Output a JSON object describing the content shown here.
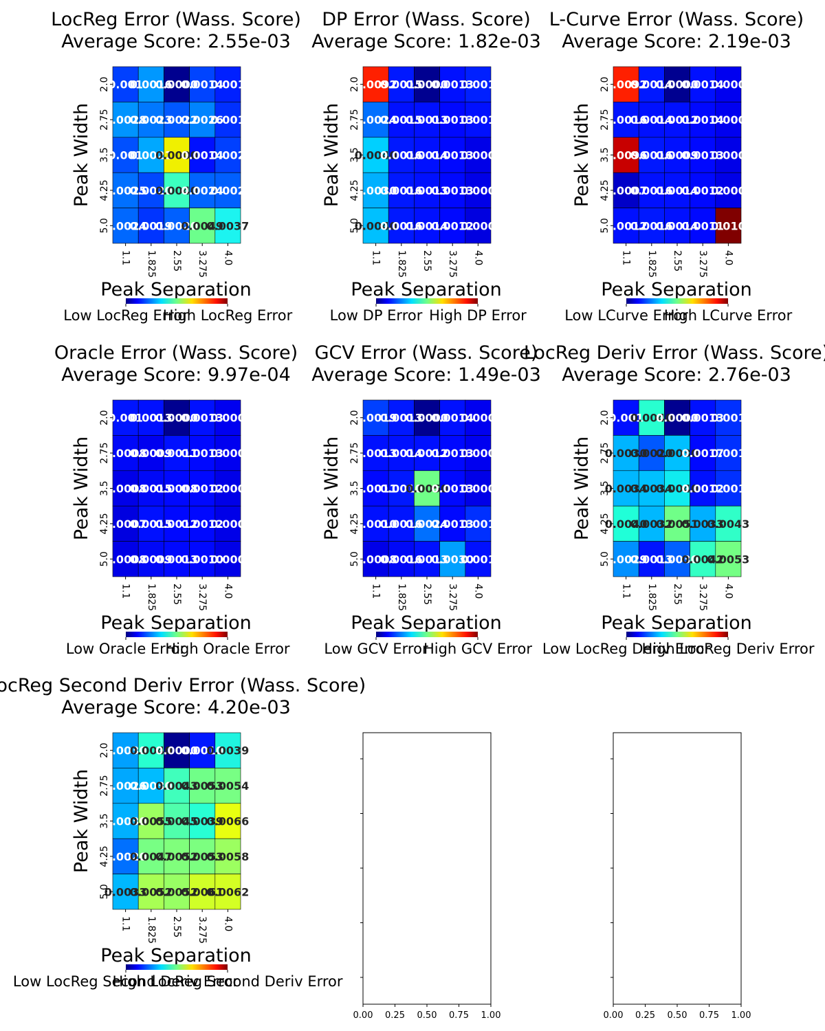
{
  "figure": {
    "xlabel": "Peak Separation",
    "ylabel": "Peak Width",
    "empty_axis_ticks": [
      "0.00",
      "0.25",
      "0.50",
      "0.75",
      "1.00"
    ]
  },
  "chart_data": [
    {
      "type": "heatmap",
      "title": "LocReg Error (Wass. Score)",
      "subtitle": "Average Score: 2.55e-03",
      "x_ticks": [
        "1.1",
        "1.825",
        "2.55",
        "3.275",
        "4.0"
      ],
      "y_ticks": [
        "2.0",
        "2.75",
        "3.5",
        "4.25",
        "5.0"
      ],
      "xlabel": "Peak Separation",
      "ylabel": "Peak Width",
      "colorbar_low": "Low LocReg Error",
      "colorbar_high": "High LocReg Error",
      "colors": [
        [
          "#0040ff",
          "#0098ff",
          "#00008f",
          "#0044ff",
          "#0020ff"
        ],
        [
          "#0094ff",
          "#0078ff",
          "#0058ff",
          "#0084ff",
          "#0030ff"
        ],
        [
          "#0050ff",
          "#00a8ff",
          "#f0f000",
          "#0010ff",
          "#0040ff"
        ],
        [
          "#0070ff",
          "#0048ff",
          "#3cffc0",
          "#0064ff",
          "#0060ff"
        ],
        [
          "#0068ff",
          "#0034ff",
          "#0060ff",
          "#6cff8c",
          "#1cf4f0"
        ]
      ],
      "labels": [
        [
          "0.001",
          "0.0016",
          "0.0000",
          "0.0014",
          "0.001"
        ],
        [
          "0.0028",
          "0.0023",
          "0.0022",
          "0.0026",
          "0.001"
        ],
        [
          "0.001",
          "0.0021",
          "0.0000",
          "0.0014",
          "0.002"
        ],
        [
          "0.0025",
          "0.0020",
          "0.0040",
          "0.0024",
          "0.002"
        ],
        [
          "0.0024",
          "0.0019",
          "0.0020",
          "0.0049",
          "0.0037"
        ]
      ],
      "label_dark": [
        [
          false,
          false,
          false,
          false,
          false
        ],
        [
          false,
          false,
          false,
          false,
          false
        ],
        [
          false,
          false,
          true,
          false,
          false
        ],
        [
          false,
          false,
          true,
          false,
          false
        ],
        [
          false,
          false,
          false,
          true,
          true
        ]
      ]
    },
    {
      "type": "heatmap",
      "title": "DP Error (Wass. Score)",
      "subtitle": "Average Score: 1.82e-03",
      "x_ticks": [
        "1.1",
        "1.825",
        "2.55",
        "3.275",
        "4.0"
      ],
      "y_ticks": [
        "2.0",
        "2.75",
        "3.5",
        "4.25",
        "5.0"
      ],
      "xlabel": "Peak Separation",
      "ylabel": "Peak Width",
      "colorbar_low": "Low DP Error",
      "colorbar_high": "High DP Error",
      "colors": [
        [
          "#ff2000",
          "#0018ff",
          "#000090",
          "#0010ff",
          "#0020ff"
        ],
        [
          "#0070ff",
          "#0010ff",
          "#0010ff",
          "#0008ff",
          "#0010ff"
        ],
        [
          "#00d0ff",
          "#0018ff",
          "#0010ff",
          "#0008ff",
          "#0000e8"
        ],
        [
          "#00b0ff",
          "#0018ff",
          "#0010ff",
          "#0008ff",
          "#0000e8"
        ],
        [
          "#00c0ff",
          "#0018ff",
          "#0010ff",
          "#0008ff",
          "#0000e0"
        ]
      ],
      "labels": [
        [
          "0.0092",
          "0.0015",
          "0.0000",
          "0.0013",
          "0.001"
        ],
        [
          "0.0024",
          "0.0015",
          "0.0013",
          "0.0013",
          "0.001"
        ],
        [
          "0.0040",
          "0.0016",
          "0.0014",
          "0.0013",
          "0.000"
        ],
        [
          "0.0030",
          "0.0016",
          "0.0013",
          "0.0013",
          "0.000"
        ],
        [
          "0.0040",
          "0.0016",
          "0.0014",
          "0.0012",
          "0.000"
        ]
      ],
      "label_dark": [
        [
          false,
          false,
          false,
          false,
          false
        ],
        [
          false,
          false,
          false,
          false,
          false
        ],
        [
          true,
          false,
          false,
          false,
          false
        ],
        [
          false,
          false,
          false,
          false,
          false
        ],
        [
          true,
          false,
          false,
          false,
          false
        ]
      ]
    },
    {
      "type": "heatmap",
      "title": "L-Curve Error (Wass. Score)",
      "subtitle": "Average Score: 2.19e-03",
      "x_ticks": [
        "1.1",
        "1.825",
        "2.55",
        "3.275",
        "4.0"
      ],
      "y_ticks": [
        "2.0",
        "2.75",
        "3.5",
        "4.25",
        "5.0"
      ],
      "xlabel": "Peak Separation",
      "ylabel": "Peak Width",
      "colorbar_low": "Low LCurve Error",
      "colorbar_high": "High LCurve Error",
      "colors": [
        [
          "#ff2000",
          "#0018ff",
          "#000090",
          "#0010ff",
          "#0000f0"
        ],
        [
          "#0014ff",
          "#0010ff",
          "#0010ff",
          "#0008ff",
          "#0000f0"
        ],
        [
          "#c80000",
          "#0018ff",
          "#0010ff",
          "#0008ff",
          "#0000e8"
        ],
        [
          "#0000c8",
          "#0010ff",
          "#0010ff",
          "#0008ff",
          "#0000e8"
        ],
        [
          "#0010ff",
          "#0018ff",
          "#0010ff",
          "#0008ff",
          "#800000"
        ]
      ],
      "labels": [
        [
          "0.0092",
          "0.0014",
          "0.0000",
          "0.0014",
          "0.000"
        ],
        [
          "0.0016",
          "0.0014",
          "0.0012",
          "0.0014",
          "0.000"
        ],
        [
          "0.0096",
          "0.0016",
          "0.0009",
          "0.0013",
          "0.000"
        ],
        [
          "0.0007",
          "0.0016",
          "0.0014",
          "0.0012",
          "0.000"
        ],
        [
          "0.0012",
          "0.0016",
          "0.0014",
          "0.0011",
          "0.010"
        ]
      ],
      "label_dark": [
        [
          false,
          false,
          false,
          false,
          false
        ],
        [
          false,
          false,
          false,
          false,
          false
        ],
        [
          false,
          false,
          false,
          false,
          false
        ],
        [
          false,
          false,
          false,
          false,
          false
        ],
        [
          false,
          false,
          false,
          false,
          false
        ]
      ]
    },
    {
      "type": "heatmap",
      "title": "Oracle Error (Wass. Score)",
      "subtitle": "Average Score: 9.97e-04",
      "x_ticks": [
        "1.1",
        "1.825",
        "2.55",
        "3.275",
        "4.0"
      ],
      "y_ticks": [
        "2.0",
        "2.75",
        "3.5",
        "4.25",
        "5.0"
      ],
      "xlabel": "Peak Separation",
      "ylabel": "Peak Width",
      "colorbar_low": "Low Oracle Error",
      "colorbar_high": "High Oracle Error",
      "colors": [
        [
          "#0014ff",
          "#0010ff",
          "#000090",
          "#0010ff",
          "#0000f0"
        ],
        [
          "#0008f8",
          "#0000f0",
          "#0010ff",
          "#0008ff",
          "#0000f0"
        ],
        [
          "#0000e8",
          "#0008f8",
          "#0008ff",
          "#0008ff",
          "#0000e8"
        ],
        [
          "#0000e0",
          "#0010ff",
          "#0008ff",
          "#0008ff",
          "#0000e8"
        ],
        [
          "#0000e8",
          "#0008f8",
          "#0008ff",
          "#0008ff",
          "#0000e8"
        ]
      ],
      "labels": [
        [
          "0.001",
          "0.0013",
          "0.0000",
          "0.0013",
          "0.000"
        ],
        [
          "0.0008",
          "0.0009",
          "0.0011",
          "0.0013",
          "0.000"
        ],
        [
          "0.0008",
          "0.0015",
          "0.0008",
          "0.0012",
          "0.000"
        ],
        [
          "0.0007",
          "0.0015",
          "0.0012",
          "0.0012",
          "0.000"
        ],
        [
          "0.0008",
          "0.0009",
          "0.0013",
          "0.0010",
          "0.000"
        ]
      ],
      "label_dark": [
        [
          false,
          false,
          false,
          false,
          false
        ],
        [
          false,
          false,
          false,
          false,
          false
        ],
        [
          false,
          false,
          false,
          false,
          false
        ],
        [
          false,
          false,
          false,
          false,
          false
        ],
        [
          false,
          false,
          false,
          false,
          false
        ]
      ]
    },
    {
      "type": "heatmap",
      "title": "GCV Error (Wass. Score)",
      "subtitle": "Average Score: 1.49e-03",
      "x_ticks": [
        "1.1",
        "1.825",
        "2.55",
        "3.275",
        "4.0"
      ],
      "y_ticks": [
        "2.0",
        "2.75",
        "3.5",
        "4.25",
        "5.0"
      ],
      "xlabel": "Peak Separation",
      "ylabel": "Peak Width",
      "colorbar_low": "Low GCV Error",
      "colorbar_high": "High GCV Error",
      "colors": [
        [
          "#0040ff",
          "#0018ff",
          "#000090",
          "#0010ff",
          "#0000f0"
        ],
        [
          "#0010ff",
          "#0010ff",
          "#0010ff",
          "#0008ff",
          "#0000f0"
        ],
        [
          "#0008ff",
          "#0018ff",
          "#70ff88",
          "#0008ff",
          "#0000e8"
        ],
        [
          "#0010ff",
          "#0014ff",
          "#0070ff",
          "#0008ff",
          "#0030ff"
        ],
        [
          "#0000e8",
          "#0008f8",
          "#0010ff",
          "#00a0ff",
          "#0010ff"
        ]
      ],
      "labels": [
        [
          "0.0019",
          "0.0013",
          "0.0000",
          "0.0014",
          "0.000"
        ],
        [
          "0.0013",
          "0.0014",
          "0.0012",
          "0.0013",
          "0.000"
        ],
        [
          "0.0011",
          "0.0010",
          "0.0050",
          "0.0013",
          "0.000"
        ],
        [
          "0.0010",
          "0.0016",
          "0.0024",
          "0.0013",
          "0.001"
        ],
        [
          "0.0008",
          "0.0016",
          "0.0013",
          "0.0030",
          "0.001"
        ]
      ],
      "label_dark": [
        [
          false,
          false,
          false,
          false,
          false
        ],
        [
          false,
          false,
          false,
          false,
          false
        ],
        [
          false,
          false,
          true,
          false,
          false
        ],
        [
          false,
          false,
          false,
          false,
          false
        ],
        [
          false,
          false,
          false,
          false,
          false
        ]
      ]
    },
    {
      "type": "heatmap",
      "title": "LocReg Deriv Error (Wass. Score)",
      "subtitle": "Average Score: 2.76e-03",
      "x_ticks": [
        "1.1",
        "1.825",
        "2.55",
        "3.275",
        "4.0"
      ],
      "y_ticks": [
        "2.0",
        "2.75",
        "3.5",
        "4.25",
        "5.0"
      ],
      "xlabel": "Peak Separation",
      "ylabel": "Peak Width",
      "colorbar_low": "Low LocReg Deriv Error",
      "colorbar_high": "High LocReg Deriv Error",
      "colors": [
        [
          "#0010ff",
          "#28ffd0",
          "#000090",
          "#0010ff",
          "#0030ff"
        ],
        [
          "#00b4ff",
          "#0058ff",
          "#00c0ff",
          "#0008ff",
          "#0030ff"
        ],
        [
          "#00b8ff",
          "#00c0ff",
          "#10ecf0",
          "#0010ff",
          "#0030ff"
        ],
        [
          "#20ffd8",
          "#00b8ff",
          "#70ff88",
          "#00b0ff",
          "#30ffc8"
        ],
        [
          "#0090ff",
          "#0014ff",
          "#0060ff",
          "#34ffc4",
          "#74ff84"
        ]
      ],
      "labels": [
        [
          "0.001",
          "0.0040",
          "0.0000",
          "0.0013",
          "0.001"
        ],
        [
          "0.0030",
          "0.0020",
          "0.0030",
          "0.0017",
          "0.001"
        ],
        [
          "0.0034",
          "0.0034",
          "0.0040",
          "0.0012",
          "0.001"
        ],
        [
          "0.0040",
          "0.0032",
          "0.0051",
          "0.0033",
          "0.0043"
        ],
        [
          "0.0029",
          "0.0013",
          "0.0030",
          "0.0042",
          "0.0053"
        ]
      ],
      "label_dark": [
        [
          false,
          true,
          false,
          false,
          false
        ],
        [
          true,
          true,
          true,
          false,
          false
        ],
        [
          true,
          true,
          true,
          false,
          false
        ],
        [
          true,
          true,
          true,
          true,
          true
        ],
        [
          false,
          false,
          false,
          true,
          true
        ]
      ]
    },
    {
      "type": "heatmap",
      "title": "LocReg Second Deriv Error (Wass. Score)",
      "subtitle": "Average Score: 4.20e-03",
      "x_ticks": [
        "1.1",
        "1.825",
        "2.55",
        "3.275",
        "4.0"
      ],
      "y_ticks": [
        "2.0",
        "2.75",
        "3.5",
        "4.25",
        "5.0"
      ],
      "xlabel": "Peak Separation",
      "ylabel": "Peak Width",
      "colorbar_low": "Low LocReg Second Deriv Error",
      "colorbar_high": "High LocReg Second Deriv Error",
      "colors": [
        [
          "#00a0ff",
          "#28ffd0",
          "#000090",
          "#0018ff",
          "#20f4e0"
        ],
        [
          "#00a8ff",
          "#00bcff",
          "#40ffbc",
          "#70ff88",
          "#78ff84"
        ],
        [
          "#00b0ff",
          "#9cff60",
          "#50ffac",
          "#28ffd4",
          "#e8ff10"
        ],
        [
          "#0070ff",
          "#78ff84",
          "#80ff7c",
          "#7cff80",
          "#9cff60"
        ],
        [
          "#00b8ff",
          "#a8ff54",
          "#98ff64",
          "#d0ff28",
          "#d4ff24"
        ]
      ],
      "labels": [
        [
          "0.0030",
          "0.0040",
          "0.0000",
          "0.0010",
          "0.0039"
        ],
        [
          "0.0026",
          "0.0030",
          "0.0043",
          "0.0053",
          "0.0054"
        ],
        [
          "0.0030",
          "0.0055",
          "0.0045",
          "0.0039",
          "0.0066"
        ],
        [
          "0.0020",
          "0.0047",
          "0.0052",
          "0.0053",
          "0.0058"
        ],
        [
          "0.0033",
          "0.0052",
          "0.0052",
          "0.0061",
          "0.0062"
        ]
      ],
      "label_dark": [
        [
          false,
          true,
          false,
          false,
          true
        ],
        [
          false,
          false,
          true,
          true,
          true
        ],
        [
          false,
          true,
          true,
          true,
          true
        ],
        [
          false,
          true,
          true,
          true,
          true
        ],
        [
          true,
          true,
          true,
          true,
          true
        ]
      ]
    }
  ]
}
